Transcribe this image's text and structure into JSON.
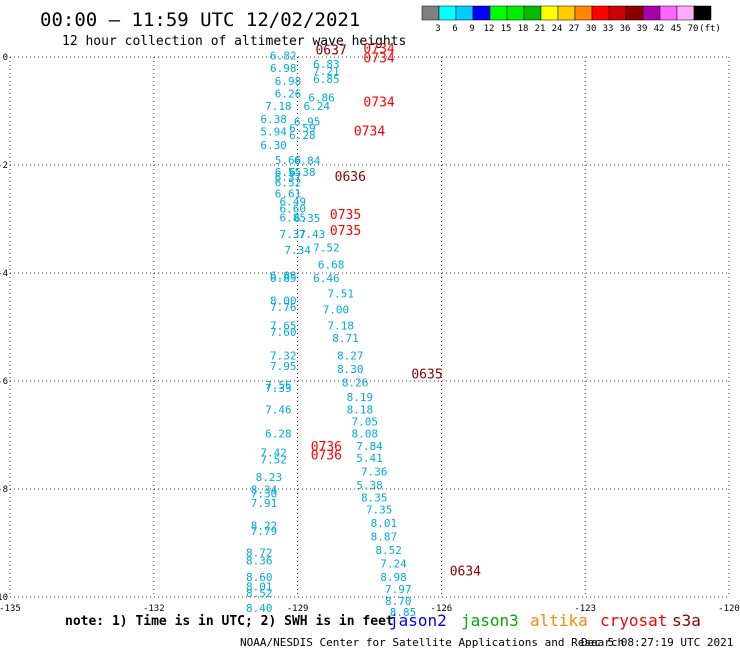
{
  "header": {
    "title": "00:00 – 11:59 UTC 12/02/2021",
    "subtitle": "12 hour collection of altimeter wave heights"
  },
  "colorbar": {
    "colors": [
      "#808080",
      "#00ffff",
      "#00ccff",
      "#0000ff",
      "#00ff00",
      "#00ee00",
      "#00bb00",
      "#ffff00",
      "#ffcc00",
      "#ff8800",
      "#ff0000",
      "#cc0000",
      "#880000",
      "#aa00aa",
      "#ff66ff",
      "#ffaaff",
      "#000000"
    ],
    "labels": [
      "3",
      "6",
      "9",
      "12",
      "15",
      "18",
      "21",
      "24",
      "27",
      "30",
      "33",
      "36",
      "39",
      "42",
      "45",
      "70",
      "(ft)"
    ]
  },
  "chart_data": {
    "type": "scatter",
    "xlim": [
      -135,
      -120
    ],
    "ylim": [
      -10,
      0
    ],
    "x_ticks": [
      "-135",
      "-132",
      "-129",
      "-126",
      "-123",
      "-120"
    ],
    "y_ticks": [
      "0",
      "-2",
      "-4",
      "-6",
      "-8",
      "-10"
    ],
    "grid": true,
    "swh_points": [
      {
        "x": -129.3,
        "y": -0.05,
        "v": "6.82"
      },
      {
        "x": -128.4,
        "y": -0.2,
        "v": "6.83"
      },
      {
        "x": -129.3,
        "y": -0.28,
        "v": "6.98"
      },
      {
        "x": -128.4,
        "y": -0.33,
        "v": "7.21"
      },
      {
        "x": -129.2,
        "y": -0.52,
        "v": "6.98"
      },
      {
        "x": -128.4,
        "y": -0.48,
        "v": "6.85"
      },
      {
        "x": -129.2,
        "y": -0.75,
        "v": "6.26"
      },
      {
        "x": -128.5,
        "y": -0.82,
        "v": "6.86"
      },
      {
        "x": -129.4,
        "y": -0.98,
        "v": "7.18"
      },
      {
        "x": -128.6,
        "y": -0.98,
        "v": "6.24"
      },
      {
        "x": -129.5,
        "y": -1.22,
        "v": "6.38"
      },
      {
        "x": -128.8,
        "y": -1.27,
        "v": "6.95"
      },
      {
        "x": -129.5,
        "y": -1.45,
        "v": "5.94"
      },
      {
        "x": -128.9,
        "y": -1.39,
        "v": "6.59"
      },
      {
        "x": -128.9,
        "y": -1.52,
        "v": "6.28"
      },
      {
        "x": -129.5,
        "y": -1.7,
        "v": "6.30"
      },
      {
        "x": -129.2,
        "y": -1.98,
        "v": "5.66"
      },
      {
        "x": -128.8,
        "y": -1.99,
        "v": "6.84"
      },
      {
        "x": -129.2,
        "y": -2.2,
        "v": "6.55"
      },
      {
        "x": -128.9,
        "y": -2.2,
        "v": "6.38"
      },
      {
        "x": -129.2,
        "y": -2.3,
        "v": "6.37"
      },
      {
        "x": -129.2,
        "y": -2.4,
        "v": "6.52"
      },
      {
        "x": -129.2,
        "y": -2.6,
        "v": "6.61"
      },
      {
        "x": -129.1,
        "y": -2.75,
        "v": "6.49"
      },
      {
        "x": -129.1,
        "y": -2.88,
        "v": "6.60"
      },
      {
        "x": -129.1,
        "y": -3.05,
        "v": "6.85"
      },
      {
        "x": -128.8,
        "y": -3.06,
        "v": "6.35"
      },
      {
        "x": -129.1,
        "y": -3.35,
        "v": "7.37"
      },
      {
        "x": -128.7,
        "y": -3.35,
        "v": "7.43"
      },
      {
        "x": -129.0,
        "y": -3.65,
        "v": "7.34"
      },
      {
        "x": -128.4,
        "y": -3.6,
        "v": "7.52"
      },
      {
        "x": -128.3,
        "y": -3.92,
        "v": "6.68"
      },
      {
        "x": -129.3,
        "y": -4.12,
        "v": "6.88"
      },
      {
        "x": -129.3,
        "y": -4.17,
        "v": "6.85"
      },
      {
        "x": -128.4,
        "y": -4.17,
        "v": "6.46"
      },
      {
        "x": -128.1,
        "y": -4.45,
        "v": "7.51"
      },
      {
        "x": -129.3,
        "y": -4.58,
        "v": "8.00"
      },
      {
        "x": -128.2,
        "y": -4.75,
        "v": "7.00"
      },
      {
        "x": -129.3,
        "y": -4.7,
        "v": "7.76"
      },
      {
        "x": -129.3,
        "y": -5.05,
        "v": "7.65"
      },
      {
        "x": -128.1,
        "y": -5.05,
        "v": "7.18"
      },
      {
        "x": -129.3,
        "y": -5.17,
        "v": "7.60"
      },
      {
        "x": -128.0,
        "y": -5.28,
        "v": "8.71"
      },
      {
        "x": -129.3,
        "y": -5.6,
        "v": "7.32"
      },
      {
        "x": -127.9,
        "y": -5.6,
        "v": "8.27"
      },
      {
        "x": -129.3,
        "y": -5.8,
        "v": "7.95"
      },
      {
        "x": -127.9,
        "y": -5.85,
        "v": "8.30"
      },
      {
        "x": -129.4,
        "y": -6.15,
        "v": "7.55"
      },
      {
        "x": -127.8,
        "y": -6.1,
        "v": "8.26"
      },
      {
        "x": -129.4,
        "y": -6.2,
        "v": "7.35"
      },
      {
        "x": -127.7,
        "y": -6.37,
        "v": "8.19"
      },
      {
        "x": -129.4,
        "y": -6.6,
        "v": "7.46"
      },
      {
        "x": -127.7,
        "y": -6.6,
        "v": "8.18"
      },
      {
        "x": -127.6,
        "y": -6.82,
        "v": "7.05"
      },
      {
        "x": -129.4,
        "y": -7.05,
        "v": "6.28"
      },
      {
        "x": -127.6,
        "y": -7.05,
        "v": "8.08"
      },
      {
        "x": -127.5,
        "y": -7.28,
        "v": "7.84"
      },
      {
        "x": -129.5,
        "y": -7.4,
        "v": "7.42"
      },
      {
        "x": -127.5,
        "y": -7.5,
        "v": "5.41"
      },
      {
        "x": -129.5,
        "y": -7.53,
        "v": "7.52"
      },
      {
        "x": -127.4,
        "y": -7.75,
        "v": "7.36"
      },
      {
        "x": -129.6,
        "y": -7.85,
        "v": "8.23"
      },
      {
        "x": -127.5,
        "y": -8.0,
        "v": "5.38"
      },
      {
        "x": -129.7,
        "y": -8.08,
        "v": "8.34"
      },
      {
        "x": -129.7,
        "y": -8.16,
        "v": "7.30"
      },
      {
        "x": -127.4,
        "y": -8.23,
        "v": "8.35"
      },
      {
        "x": -129.7,
        "y": -8.33,
        "v": "7.91"
      },
      {
        "x": -127.3,
        "y": -8.45,
        "v": "7.35"
      },
      {
        "x": -129.7,
        "y": -8.75,
        "v": "8.22"
      },
      {
        "x": -127.2,
        "y": -8.7,
        "v": "8.01"
      },
      {
        "x": -129.7,
        "y": -8.85,
        "v": "7.79"
      },
      {
        "x": -127.2,
        "y": -8.95,
        "v": "8.87"
      },
      {
        "x": -129.8,
        "y": -9.25,
        "v": "8.72"
      },
      {
        "x": -127.1,
        "y": -9.2,
        "v": "8.52"
      },
      {
        "x": -129.8,
        "y": -9.4,
        "v": "8.36"
      },
      {
        "x": -127.0,
        "y": -9.45,
        "v": "7.24"
      },
      {
        "x": -129.8,
        "y": -9.7,
        "v": "8.60"
      },
      {
        "x": -127.0,
        "y": -9.7,
        "v": "8.98"
      },
      {
        "x": -129.8,
        "y": -9.88,
        "v": "8.01"
      },
      {
        "x": -126.9,
        "y": -9.93,
        "v": "7.97"
      },
      {
        "x": -129.8,
        "y": -10.0,
        "v": "8.52"
      },
      {
        "x": -126.9,
        "y": -10.15,
        "v": "8.70"
      },
      {
        "x": -129.8,
        "y": -10.28,
        "v": "8.40"
      },
      {
        "x": -126.8,
        "y": -10.35,
        "v": "8.85"
      }
    ],
    "time_labels": [
      {
        "x": -128.3,
        "y": 0.05,
        "t": "0637",
        "color": "#880000"
      },
      {
        "x": -127.3,
        "y": 0.07,
        "t": "0734",
        "color": "#ff0000"
      },
      {
        "x": -127.3,
        "y": -0.1,
        "t": "0734",
        "color": "#ff0000"
      },
      {
        "x": -127.3,
        "y": -0.92,
        "t": "0734",
        "color": "#ff0000"
      },
      {
        "x": -127.5,
        "y": -1.45,
        "t": "0734",
        "color": "#ff0000"
      },
      {
        "x": -127.9,
        "y": -2.3,
        "t": "0636",
        "color": "#880000"
      },
      {
        "x": -128.0,
        "y": -3.0,
        "t": "0735",
        "color": "#ff0000"
      },
      {
        "x": -128.0,
        "y": -3.3,
        "t": "0735",
        "color": "#ff0000"
      },
      {
        "x": -126.3,
        "y": -5.95,
        "t": "0635",
        "color": "#880000"
      },
      {
        "x": -128.4,
        "y": -7.3,
        "t": "0736",
        "color": "#ff0000"
      },
      {
        "x": -128.4,
        "y": -7.45,
        "t": "0736",
        "color": "#ff0000"
      },
      {
        "x": -125.5,
        "y": -9.6,
        "t": "0634",
        "color": "#880000"
      }
    ]
  },
  "note": "note: 1) Time is in UTC; 2) SWH is in feet",
  "legend": [
    {
      "name": "jason2",
      "color": "#0000ff"
    },
    {
      "name": "jason3",
      "color": "#00aa00"
    },
    {
      "name": "altika",
      "color": "#ff8800"
    },
    {
      "name": "cryosat",
      "color": "#ff0000"
    },
    {
      "name": "s3a",
      "color": "#880000"
    }
  ],
  "footer": {
    "credit": "NOAA/NESDIS Center for Satellite Applications and Research",
    "timestamp": "Dec  5 08:27:19 UTC 2021"
  }
}
